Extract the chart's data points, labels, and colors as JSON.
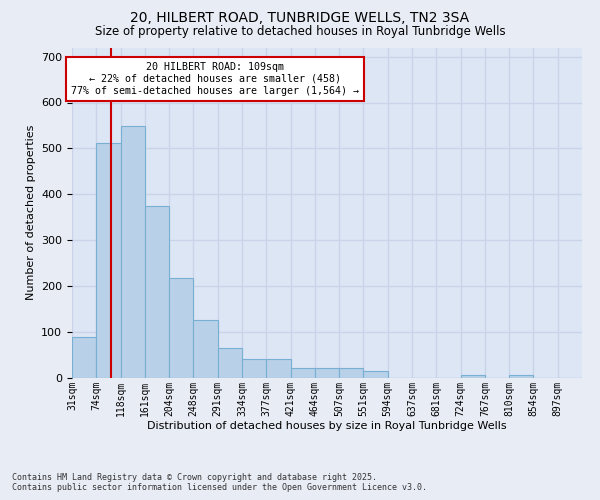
{
  "title": "20, HILBERT ROAD, TUNBRIDGE WELLS, TN2 3SA",
  "subtitle": "Size of property relative to detached houses in Royal Tunbridge Wells",
  "xlabel": "Distribution of detached houses by size in Royal Tunbridge Wells",
  "ylabel": "Number of detached properties",
  "bar_color": "#b8d0e8",
  "bar_edge_color": "#7aafd4",
  "background_color": "#dce6f5",
  "grid_color": "#c8d4e8",
  "fig_bg_color": "#e8ecf5",
  "annotation_box_color": "#cc0000",
  "red_line_x": 109,
  "annotation_line1": "20 HILBERT ROAD: 109sqm",
  "annotation_line2": "← 22% of detached houses are smaller (458)",
  "annotation_line3": "77% of semi-detached houses are larger (1,564) →",
  "tick_labels": [
    "31sqm",
    "74sqm",
    "118sqm",
    "161sqm",
    "204sqm",
    "248sqm",
    "291sqm",
    "334sqm",
    "377sqm",
    "421sqm",
    "464sqm",
    "507sqm",
    "551sqm",
    "594sqm",
    "637sqm",
    "681sqm",
    "724sqm",
    "767sqm",
    "810sqm",
    "854sqm",
    "897sqm"
  ],
  "bin_centers": [
    0,
    1,
    2,
    3,
    4,
    5,
    6,
    7,
    8,
    9,
    10,
    11,
    12,
    13,
    14,
    15,
    16,
    17,
    18,
    19,
    20
  ],
  "bar_heights": [
    88,
    512,
    548,
    375,
    218,
    125,
    65,
    40,
    40,
    20,
    20,
    20,
    15,
    0,
    0,
    0,
    5,
    0,
    5,
    0,
    0
  ],
  "red_line_bin": 1.6,
  "ylim": [
    0,
    720
  ],
  "yticks": [
    0,
    100,
    200,
    300,
    400,
    500,
    600,
    700
  ],
  "footer_line1": "Contains HM Land Registry data © Crown copyright and database right 2025.",
  "footer_line2": "Contains public sector information licensed under the Open Government Licence v3.0."
}
